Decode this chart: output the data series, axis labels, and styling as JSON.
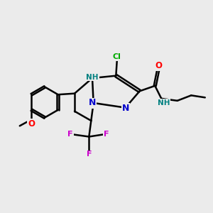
{
  "background_color": "#ebebeb",
  "bond_color": "#000000",
  "bond_width": 1.8,
  "atom_colors": {
    "N": "#0000cc",
    "O": "#ff0000",
    "F": "#cc00cc",
    "Cl": "#00aa00",
    "NH_ring": "#008080",
    "NH_amide": "#008080",
    "C": "#000000"
  },
  "figsize": [
    3.0,
    3.0
  ],
  "dpi": 100
}
